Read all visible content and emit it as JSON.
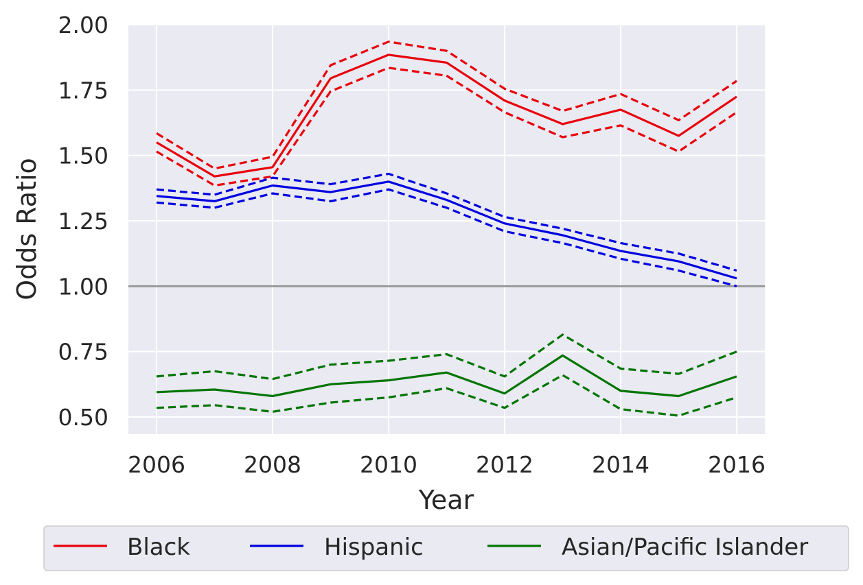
{
  "chart_data": {
    "type": "line",
    "title": "",
    "xlabel": "Year",
    "ylabel": "Odds Ratio",
    "x": [
      2006,
      2007,
      2008,
      2009,
      2010,
      2011,
      2012,
      2013,
      2014,
      2015,
      2016
    ],
    "x_ticks": [
      "2006",
      "2008",
      "2010",
      "2012",
      "2014",
      "2016"
    ],
    "y_ticks": [
      "0.50",
      "0.75",
      "1.00",
      "1.25",
      "1.50",
      "1.75",
      "2.00"
    ],
    "xlim": [
      2005.5,
      2016.5
    ],
    "ylim": [
      0.44,
      2.0
    ],
    "grid": true,
    "reference_line": {
      "y": 1.0,
      "color": "#999999"
    },
    "legend": {
      "placement": "bottom",
      "columns": 3
    },
    "series": [
      {
        "name": "Black",
        "color": "#e8000b",
        "values": [
          1.55,
          1.42,
          1.455,
          1.795,
          1.885,
          1.855,
          1.71,
          1.62,
          1.675,
          1.575,
          1.725
        ],
        "upper": [
          1.585,
          1.45,
          1.495,
          1.845,
          1.935,
          1.9,
          1.755,
          1.67,
          1.735,
          1.635,
          1.785
        ],
        "lower": [
          1.515,
          1.385,
          1.42,
          1.745,
          1.835,
          1.805,
          1.665,
          1.57,
          1.615,
          1.515,
          1.665
        ]
      },
      {
        "name": "Hispanic",
        "color": "#0000e0",
        "values": [
          1.345,
          1.325,
          1.385,
          1.36,
          1.4,
          1.33,
          1.24,
          1.195,
          1.135,
          1.095,
          1.03
        ],
        "upper": [
          1.37,
          1.35,
          1.415,
          1.39,
          1.43,
          1.355,
          1.265,
          1.22,
          1.165,
          1.125,
          1.06
        ],
        "lower": [
          1.32,
          1.3,
          1.355,
          1.325,
          1.37,
          1.3,
          1.21,
          1.165,
          1.105,
          1.06,
          1.0
        ]
      },
      {
        "name": "Asian/Pacific Islander",
        "color": "#007500",
        "values": [
          0.595,
          0.605,
          0.58,
          0.625,
          0.64,
          0.67,
          0.59,
          0.735,
          0.6,
          0.58,
          0.655
        ],
        "upper": [
          0.655,
          0.675,
          0.645,
          0.7,
          0.715,
          0.74,
          0.655,
          0.815,
          0.685,
          0.665,
          0.75
        ],
        "lower": [
          0.535,
          0.545,
          0.52,
          0.555,
          0.575,
          0.61,
          0.535,
          0.66,
          0.53,
          0.505,
          0.575
        ]
      }
    ]
  }
}
